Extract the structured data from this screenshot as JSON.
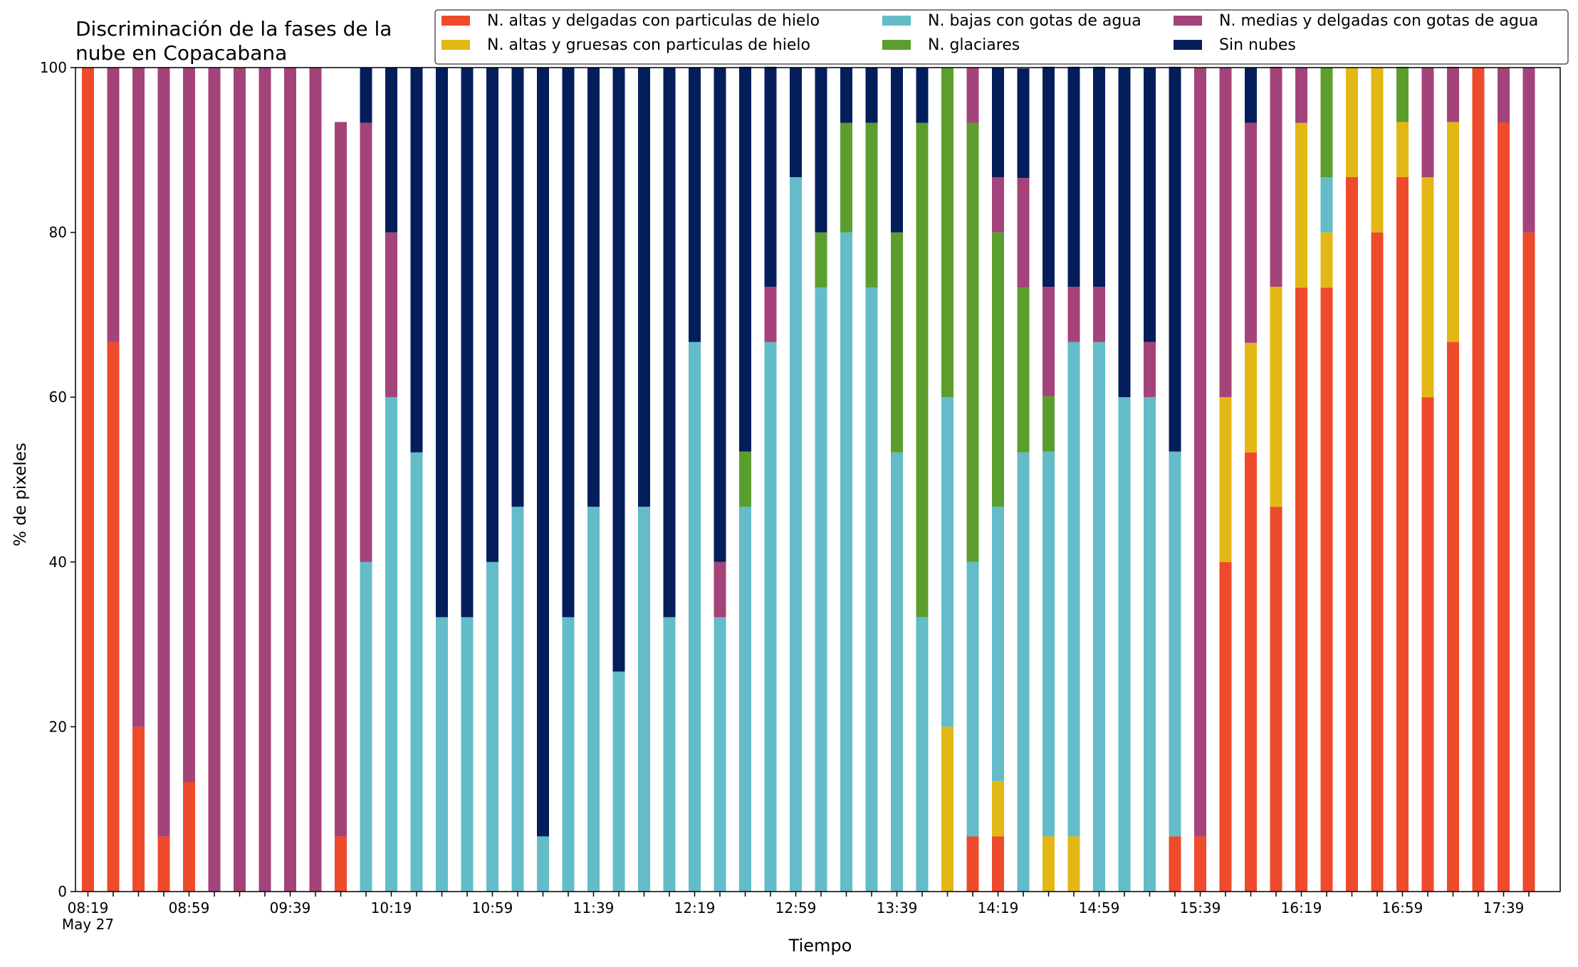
{
  "chart_data": {
    "type": "bar",
    "stacked": true,
    "title_lines": [
      "Discriminación de la fases de la",
      "nube en Copacabana"
    ],
    "xlabel": "Tiempo",
    "ylabel": "% de pixeles",
    "ylim": [
      0,
      100
    ],
    "yticks": [
      0,
      20,
      40,
      60,
      80,
      100
    ],
    "grid": false,
    "legend_placement": "top",
    "x_start_note": "May 27",
    "x_tick_labels": [
      {
        "index": 0,
        "label": "08:19"
      },
      {
        "index": 4,
        "label": "08:59"
      },
      {
        "index": 8,
        "label": "09:39"
      },
      {
        "index": 12,
        "label": "10:19"
      },
      {
        "index": 16,
        "label": "10:59"
      },
      {
        "index": 20,
        "label": "11:39"
      },
      {
        "index": 24,
        "label": "12:19"
      },
      {
        "index": 28,
        "label": "12:59"
      },
      {
        "index": 32,
        "label": "13:39"
      },
      {
        "index": 36,
        "label": "14:19"
      },
      {
        "index": 40,
        "label": "14:59"
      },
      {
        "index": 44,
        "label": "15:39"
      },
      {
        "index": 48,
        "label": "16:19"
      },
      {
        "index": 52,
        "label": "16:59"
      },
      {
        "index": 56,
        "label": "17:39"
      }
    ],
    "categories": [
      "08:19",
      "08:29",
      "08:39",
      "08:49",
      "08:59",
      "09:09",
      "09:19",
      "09:29",
      "09:39",
      "09:49",
      "09:59",
      "10:09",
      "10:19",
      "10:29",
      "10:39",
      "10:49",
      "10:59",
      "11:09",
      "11:19",
      "11:29",
      "11:39",
      "11:49",
      "11:59",
      "12:09",
      "12:19",
      "12:29",
      "12:39",
      "12:49",
      "12:59",
      "13:09",
      "13:19",
      "13:29",
      "13:39",
      "13:49",
      "13:59",
      "14:09",
      "14:19",
      "14:29",
      "14:39",
      "14:49",
      "14:59",
      "15:09",
      "15:19",
      "15:29",
      "15:39",
      "15:49",
      "15:59",
      "16:09",
      "16:19",
      "16:29",
      "16:39",
      "16:49",
      "16:59",
      "17:09",
      "17:19",
      "17:29",
      "17:39",
      "17:49"
    ],
    "series": [
      {
        "name": "N. altas y delgadas con particulas de hielo",
        "color": "#ee4a2c",
        "values": [
          100,
          66.7,
          20,
          6.7,
          13.3,
          0,
          0,
          0,
          0,
          0,
          6.7,
          0,
          0,
          0,
          0,
          0,
          0,
          0,
          0,
          0,
          0,
          0,
          0,
          0,
          0,
          0,
          0,
          0,
          0,
          0,
          0,
          0,
          0,
          0,
          0,
          6.7,
          6.7,
          0,
          0,
          0,
          0,
          0,
          0,
          6.7,
          6.7,
          40,
          53.3,
          46.7,
          73.3,
          73.3,
          86.7,
          80,
          86.7,
          60,
          66.7,
          100,
          93.3,
          80
        ]
      },
      {
        "name": "N. altas y gruesas con particulas de hielo",
        "color": "#e3b714",
        "values": [
          0,
          0,
          0,
          0,
          0,
          0,
          0,
          0,
          0,
          0,
          0,
          0,
          0,
          0,
          0,
          0,
          0,
          0,
          0,
          0,
          0,
          0,
          0,
          0,
          0,
          0,
          0,
          0,
          0,
          0,
          0,
          0,
          0,
          0,
          20,
          0,
          6.7,
          0,
          6.7,
          6.7,
          0,
          0,
          0,
          0,
          0,
          20,
          13.3,
          26.7,
          20,
          6.7,
          13.3,
          20,
          6.7,
          26.7,
          26.7,
          0,
          0,
          0
        ]
      },
      {
        "name": "N. bajas con gotas de agua",
        "color": "#63bcc8",
        "values": [
          0,
          0,
          0,
          0,
          0,
          0,
          0,
          0,
          0,
          0,
          0,
          40,
          60,
          53.3,
          33.3,
          33.3,
          40,
          46.7,
          6.7,
          33.3,
          46.7,
          26.7,
          46.7,
          33.3,
          66.7,
          33.3,
          46.7,
          66.7,
          86.7,
          73.3,
          80,
          73.3,
          53.3,
          33.3,
          40,
          33.3,
          33.3,
          53.3,
          46.7,
          60,
          66.7,
          60,
          60,
          46.7,
          0,
          0,
          0,
          0,
          0,
          6.7,
          0,
          0,
          0,
          0,
          0,
          0,
          0,
          0
        ]
      },
      {
        "name": "N. glaciares",
        "color": "#5c9e2e",
        "values": [
          0,
          0,
          0,
          0,
          0,
          0,
          0,
          0,
          0,
          0,
          0,
          0,
          0,
          0,
          0,
          0,
          0,
          0,
          0,
          0,
          0,
          0,
          0,
          0,
          0,
          0,
          6.7,
          0,
          0,
          6.7,
          13.3,
          20,
          26.7,
          60,
          40,
          53.3,
          33.3,
          20,
          6.7,
          0,
          0,
          0,
          0,
          0,
          0,
          0,
          0,
          0,
          0,
          13.3,
          0,
          0,
          6.7,
          0,
          0,
          0,
          0,
          0
        ]
      },
      {
        "name": "N. medias y delgadas con gotas de agua",
        "color": "#a4437a",
        "values": [
          0,
          33.3,
          80,
          93.3,
          86.7,
          100,
          100,
          100,
          100,
          100,
          86.7,
          53.3,
          20,
          0,
          0,
          0,
          0,
          0,
          0,
          0,
          0,
          0,
          0,
          0,
          0,
          6.7,
          0,
          6.7,
          0,
          0,
          0,
          0,
          0,
          0,
          0,
          6.7,
          6.7,
          13.3,
          13.3,
          6.7,
          6.7,
          0,
          6.7,
          0,
          93.3,
          40,
          26.7,
          26.7,
          6.7,
          0,
          0,
          0,
          0,
          13.3,
          6.7,
          0,
          6.7,
          20
        ]
      },
      {
        "name": "Sin nubes",
        "color": "#041e5c",
        "values": [
          0,
          0,
          0,
          0,
          0,
          0,
          0,
          0,
          0,
          0,
          0,
          6.7,
          20,
          46.7,
          66.7,
          66.7,
          60,
          53.3,
          93.3,
          66.7,
          53.3,
          73.3,
          53.3,
          66.7,
          33.3,
          60,
          46.7,
          26.7,
          13.3,
          20,
          6.7,
          6.7,
          20,
          6.7,
          0,
          0,
          13.3,
          13.3,
          26.7,
          26.7,
          26.7,
          40,
          33.3,
          46.7,
          0,
          0,
          6.7,
          0,
          0,
          0,
          0,
          0,
          0,
          0,
          0,
          0,
          0,
          0
        ]
      }
    ]
  }
}
